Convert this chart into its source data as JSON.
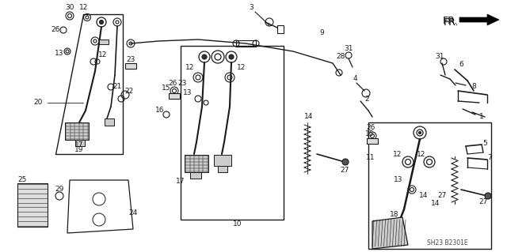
{
  "background_color": "#ffffff",
  "fig_width": 6.4,
  "fig_height": 3.19,
  "dpi": 100,
  "watermark": "SH23 B2301E",
  "fr_label": "FR.",
  "line_color": "#1a1a1a",
  "text_color": "#1a1a1a",
  "font_size": 6.5,
  "watermark_fontsize": 5.5,
  "fr_fontsize": 9
}
